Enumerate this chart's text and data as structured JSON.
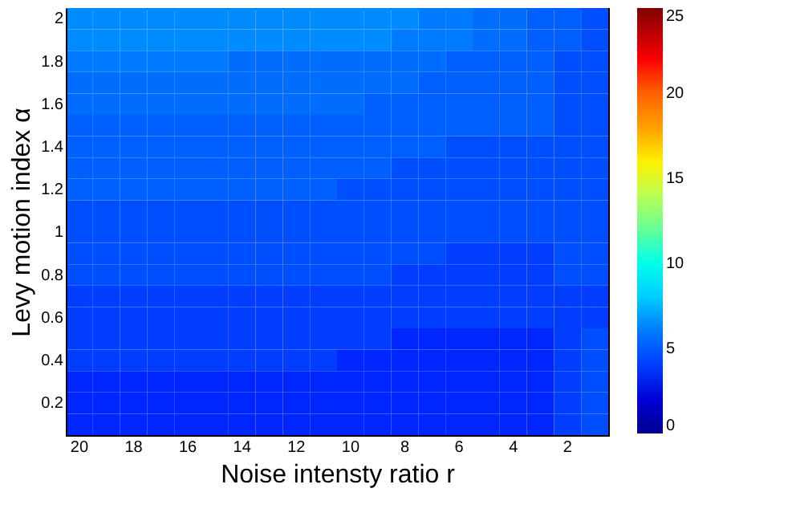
{
  "chart_data": {
    "type": "heatmap",
    "xlabel": "Noise intensty ratio r",
    "ylabel": "Levy motion index α",
    "categories": [
      "20",
      null,
      "18",
      null,
      "16",
      null,
      "14",
      null,
      "12",
      null,
      "10",
      null,
      "8",
      null,
      "6",
      null,
      "4",
      null,
      "2",
      null
    ],
    "y_categories": [
      "2",
      null,
      "1.8",
      null,
      "1.6",
      null,
      "1.4",
      null,
      "1.2",
      null,
      "1",
      null,
      "0.8",
      null,
      "0.6",
      null,
      "0.4",
      null,
      "0.2",
      null
    ],
    "clim": [
      0,
      25
    ],
    "cticks": [
      0,
      5,
      10,
      15,
      20,
      25
    ],
    "cells": [
      [
        6.5,
        6.5,
        6.5,
        6.5,
        6.5,
        6.5,
        6.5,
        6.5,
        6.5,
        6.5,
        6.5,
        6.5,
        6.5,
        6.0,
        6.0,
        5.5,
        5.5,
        5.0,
        5.0,
        4.5
      ],
      [
        6.5,
        6.5,
        6.5,
        6.5,
        6.5,
        6.5,
        6.5,
        6.5,
        6.5,
        6.5,
        6.5,
        6.5,
        6.0,
        6.0,
        6.0,
        5.5,
        5.5,
        5.0,
        5.0,
        4.5
      ],
      [
        6.0,
        6.0,
        6.0,
        6.0,
        6.0,
        6.0,
        5.5,
        5.5,
        5.5,
        5.5,
        5.5,
        5.5,
        5.5,
        5.5,
        5.0,
        5.0,
        5.0,
        5.0,
        4.5,
        4.5
      ],
      [
        5.5,
        5.5,
        5.5,
        5.5,
        5.5,
        5.5,
        5.5,
        5.5,
        5.5,
        5.5,
        5.5,
        5.5,
        5.5,
        5.0,
        5.0,
        5.0,
        5.0,
        5.0,
        4.5,
        4.5
      ],
      [
        5.5,
        5.5,
        5.5,
        5.5,
        5.5,
        5.5,
        5.5,
        5.5,
        5.5,
        5.5,
        5.5,
        5.0,
        5.0,
        5.0,
        5.0,
        5.0,
        5.0,
        5.0,
        4.5,
        4.5
      ],
      [
        5.0,
        5.0,
        5.0,
        5.0,
        5.0,
        5.0,
        5.0,
        5.0,
        5.0,
        5.0,
        5.0,
        5.0,
        5.0,
        5.0,
        5.0,
        5.0,
        5.0,
        5.0,
        4.5,
        4.5
      ],
      [
        5.0,
        5.0,
        5.0,
        5.0,
        5.0,
        5.0,
        5.0,
        5.0,
        5.0,
        5.0,
        5.0,
        5.0,
        5.0,
        5.0,
        4.5,
        4.5,
        4.5,
        4.5,
        4.5,
        4.5
      ],
      [
        5.0,
        5.0,
        5.0,
        5.0,
        5.0,
        5.0,
        5.0,
        5.0,
        5.0,
        5.0,
        5.0,
        5.0,
        4.5,
        4.5,
        4.5,
        4.5,
        4.5,
        4.5,
        4.5,
        4.5
      ],
      [
        5.0,
        5.0,
        5.0,
        5.0,
        5.0,
        5.0,
        5.0,
        5.0,
        5.0,
        5.0,
        4.5,
        4.5,
        4.5,
        4.5,
        4.5,
        4.5,
        4.5,
        4.5,
        4.5,
        4.5
      ],
      [
        4.5,
        4.5,
        4.5,
        4.5,
        4.5,
        4.5,
        4.5,
        4.5,
        4.5,
        4.5,
        4.5,
        4.5,
        4.5,
        4.5,
        4.5,
        4.5,
        4.5,
        4.5,
        4.5,
        4.5
      ],
      [
        4.5,
        4.5,
        4.5,
        4.5,
        4.5,
        4.5,
        4.5,
        4.5,
        4.5,
        4.5,
        4.5,
        4.5,
        4.5,
        4.5,
        4.5,
        4.5,
        4.5,
        4.5,
        4.5,
        4.5
      ],
      [
        4.5,
        4.5,
        4.5,
        4.5,
        4.5,
        4.5,
        4.5,
        4.5,
        4.5,
        4.5,
        4.5,
        4.5,
        4.5,
        4.5,
        4.0,
        4.0,
        4.0,
        4.0,
        4.5,
        4.5
      ],
      [
        4.5,
        4.5,
        4.5,
        4.5,
        4.5,
        4.5,
        4.5,
        4.5,
        4.5,
        4.5,
        4.5,
        4.5,
        4.0,
        4.0,
        4.0,
        4.0,
        4.0,
        4.0,
        4.5,
        4.5
      ],
      [
        4.0,
        4.0,
        4.0,
        4.0,
        4.0,
        4.0,
        4.0,
        4.0,
        4.0,
        4.0,
        4.0,
        4.0,
        4.0,
        4.0,
        4.0,
        4.0,
        4.0,
        4.0,
        4.0,
        4.0
      ],
      [
        4.0,
        4.0,
        4.0,
        4.0,
        4.0,
        4.0,
        4.0,
        4.0,
        4.0,
        4.0,
        4.0,
        4.0,
        4.0,
        4.0,
        4.0,
        4.0,
        4.0,
        4.0,
        4.0,
        4.0
      ],
      [
        4.0,
        4.0,
        4.0,
        4.0,
        4.0,
        4.0,
        4.0,
        4.0,
        4.0,
        4.0,
        4.0,
        4.0,
        3.5,
        3.5,
        3.5,
        3.5,
        3.5,
        3.5,
        4.0,
        4.5
      ],
      [
        4.0,
        4.0,
        4.0,
        4.0,
        4.0,
        4.0,
        4.0,
        4.0,
        4.0,
        4.0,
        3.5,
        3.5,
        3.5,
        3.5,
        3.5,
        3.5,
        3.5,
        3.5,
        4.0,
        4.5
      ],
      [
        3.5,
        3.5,
        3.5,
        3.5,
        3.5,
        3.5,
        3.5,
        3.5,
        3.5,
        3.5,
        3.5,
        3.5,
        3.5,
        3.5,
        3.5,
        3.5,
        3.5,
        3.5,
        4.0,
        4.5
      ],
      [
        3.5,
        3.5,
        3.5,
        3.5,
        3.5,
        3.5,
        3.5,
        3.5,
        3.5,
        3.5,
        3.5,
        3.5,
        3.5,
        3.5,
        3.5,
        3.5,
        3.5,
        3.5,
        4.0,
        4.5
      ],
      [
        3.5,
        3.5,
        3.5,
        3.5,
        3.5,
        3.5,
        3.5,
        3.5,
        3.5,
        3.5,
        3.5,
        3.5,
        3.5,
        3.5,
        3.5,
        3.5,
        3.5,
        3.5,
        4.0,
        4.5
      ]
    ]
  }
}
